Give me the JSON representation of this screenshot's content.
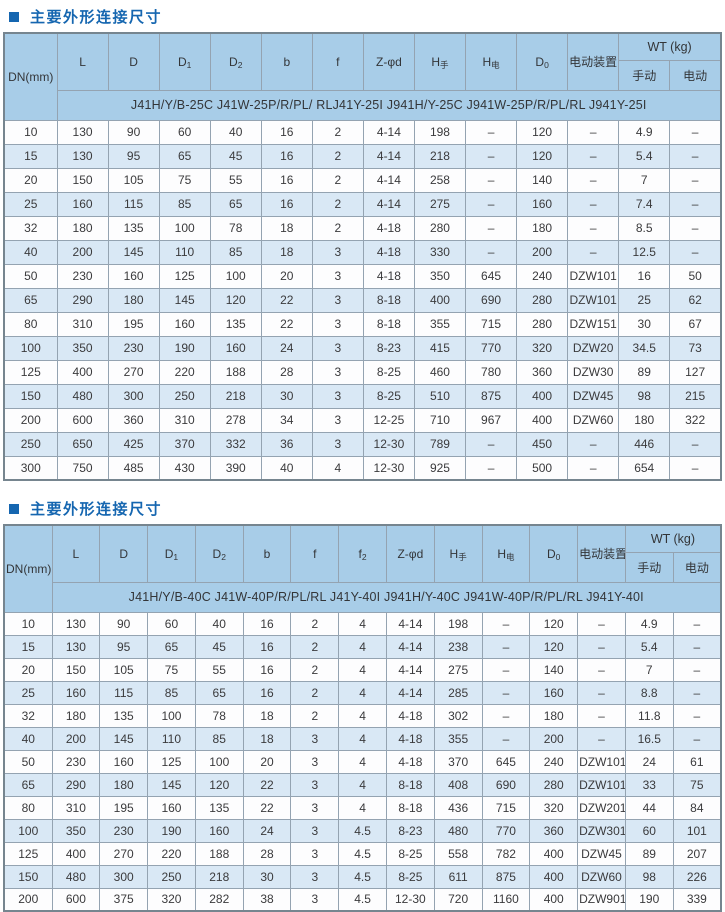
{
  "colors": {
    "title_blue": "#1566b0",
    "header_bg": "#a8cde8",
    "alt_row_bg": "#d9e8f5",
    "border_gray": "#94a3b1"
  },
  "tables": [
    {
      "title": "主要外形连接尺寸",
      "header": {
        "dn_label": "DN(mm)",
        "columns": [
          {
            "base": "L"
          },
          {
            "base": "D"
          },
          {
            "base": "D",
            "sub": "1"
          },
          {
            "base": "D",
            "sub": "2"
          },
          {
            "base": "b"
          },
          {
            "base": "f"
          },
          {
            "base": "Z-φd"
          },
          {
            "base": "H",
            "sub": "手"
          },
          {
            "base": "H",
            "sub": "电"
          },
          {
            "base": "D",
            "sub": "0"
          },
          {
            "base": "电动装置"
          }
        ],
        "wt_label": "WT (kg)",
        "wt_columns": [
          "手动",
          "电动"
        ],
        "models_line": "J41H/Y/B-25C  J41W-25P/R/PL/ RLJ41Y-25I  J941H/Y-25C  J941W-25P/R/PL/RL  J941Y-25I"
      },
      "rows": [
        [
          "10",
          "130",
          "90",
          "60",
          "40",
          "16",
          "2",
          "4-14",
          "198",
          "–",
          "120",
          "–",
          "4.9",
          "–"
        ],
        [
          "15",
          "130",
          "95",
          "65",
          "45",
          "16",
          "2",
          "4-14",
          "218",
          "–",
          "120",
          "–",
          "5.4",
          "–"
        ],
        [
          "20",
          "150",
          "105",
          "75",
          "55",
          "16",
          "2",
          "4-14",
          "258",
          "–",
          "140",
          "–",
          "7",
          "–"
        ],
        [
          "25",
          "160",
          "115",
          "85",
          "65",
          "16",
          "2",
          "4-14",
          "275",
          "–",
          "160",
          "–",
          "7.4",
          "–"
        ],
        [
          "32",
          "180",
          "135",
          "100",
          "78",
          "18",
          "2",
          "4-18",
          "280",
          "–",
          "180",
          "–",
          "8.5",
          "–"
        ],
        [
          "40",
          "200",
          "145",
          "110",
          "85",
          "18",
          "3",
          "4-18",
          "330",
          "–",
          "200",
          "–",
          "12.5",
          "–"
        ],
        [
          "50",
          "230",
          "160",
          "125",
          "100",
          "20",
          "3",
          "4-18",
          "350",
          "645",
          "240",
          "DZW101",
          "16",
          "50"
        ],
        [
          "65",
          "290",
          "180",
          "145",
          "120",
          "22",
          "3",
          "8-18",
          "400",
          "690",
          "280",
          "DZW101",
          "25",
          "62"
        ],
        [
          "80",
          "310",
          "195",
          "160",
          "135",
          "22",
          "3",
          "8-18",
          "355",
          "715",
          "280",
          "DZW151",
          "30",
          "67"
        ],
        [
          "100",
          "350",
          "230",
          "190",
          "160",
          "24",
          "3",
          "8-23",
          "415",
          "770",
          "320",
          "DZW20",
          "34.5",
          "73"
        ],
        [
          "125",
          "400",
          "270",
          "220",
          "188",
          "28",
          "3",
          "8-25",
          "460",
          "780",
          "360",
          "DZW30",
          "89",
          "127"
        ],
        [
          "150",
          "480",
          "300",
          "250",
          "218",
          "30",
          "3",
          "8-25",
          "510",
          "875",
          "400",
          "DZW45",
          "98",
          "215"
        ],
        [
          "200",
          "600",
          "360",
          "310",
          "278",
          "34",
          "3",
          "12-25",
          "710",
          "967",
          "400",
          "DZW60",
          "180",
          "322"
        ],
        [
          "250",
          "650",
          "425",
          "370",
          "332",
          "36",
          "3",
          "12-30",
          "789",
          "–",
          "450",
          "–",
          "446",
          "–"
        ],
        [
          "300",
          "750",
          "485",
          "430",
          "390",
          "40",
          "4",
          "12-30",
          "925",
          "–",
          "500",
          "–",
          "654",
          "–"
        ]
      ]
    },
    {
      "title": "主要外形连接尺寸",
      "header": {
        "dn_label": "DN(mm)",
        "columns": [
          {
            "base": "L"
          },
          {
            "base": "D"
          },
          {
            "base": "D",
            "sub": "1"
          },
          {
            "base": "D",
            "sub": "2"
          },
          {
            "base": "b"
          },
          {
            "base": "f"
          },
          {
            "base": "f",
            "sub": "2"
          },
          {
            "base": "Z-φd"
          },
          {
            "base": "H",
            "sub": "手"
          },
          {
            "base": "H",
            "sub": "电"
          },
          {
            "base": "D",
            "sub": "0"
          },
          {
            "base": "电动装置"
          }
        ],
        "wt_label": "WT (kg)",
        "wt_columns": [
          "手动",
          "电动"
        ],
        "models_line": "J41H/Y/B-40C  J41W-40P/R/PL/RL  J41Y-40I  J941H/Y-40C  J941W-40P/R/PL/RL  J941Y-40I"
      },
      "rows": [
        [
          "10",
          "130",
          "90",
          "60",
          "40",
          "16",
          "2",
          "4",
          "4-14",
          "198",
          "–",
          "120",
          "–",
          "4.9",
          "–"
        ],
        [
          "15",
          "130",
          "95",
          "65",
          "45",
          "16",
          "2",
          "4",
          "4-14",
          "238",
          "–",
          "120",
          "–",
          "5.4",
          "–"
        ],
        [
          "20",
          "150",
          "105",
          "75",
          "55",
          "16",
          "2",
          "4",
          "4-14",
          "275",
          "–",
          "140",
          "–",
          "7",
          "–"
        ],
        [
          "25",
          "160",
          "115",
          "85",
          "65",
          "16",
          "2",
          "4",
          "4-14",
          "285",
          "–",
          "160",
          "–",
          "8.8",
          "–"
        ],
        [
          "32",
          "180",
          "135",
          "100",
          "78",
          "18",
          "2",
          "4",
          "4-18",
          "302",
          "–",
          "180",
          "–",
          "11.8",
          "–"
        ],
        [
          "40",
          "200",
          "145",
          "110",
          "85",
          "18",
          "3",
          "4",
          "4-18",
          "355",
          "–",
          "200",
          "–",
          "16.5",
          "–"
        ],
        [
          "50",
          "230",
          "160",
          "125",
          "100",
          "20",
          "3",
          "4",
          "4-18",
          "370",
          "645",
          "240",
          "DZW101",
          "24",
          "61"
        ],
        [
          "65",
          "290",
          "180",
          "145",
          "120",
          "22",
          "3",
          "4",
          "8-18",
          "408",
          "690",
          "280",
          "DZW101",
          "33",
          "75"
        ],
        [
          "80",
          "310",
          "195",
          "160",
          "135",
          "22",
          "3",
          "4",
          "8-18",
          "436",
          "715",
          "320",
          "DZW201",
          "44",
          "84"
        ],
        [
          "100",
          "350",
          "230",
          "190",
          "160",
          "24",
          "3",
          "4.5",
          "8-23",
          "480",
          "770",
          "360",
          "DZW301",
          "60",
          "101"
        ],
        [
          "125",
          "400",
          "270",
          "220",
          "188",
          "28",
          "3",
          "4.5",
          "8-25",
          "558",
          "782",
          "400",
          "DZW45",
          "89",
          "207"
        ],
        [
          "150",
          "480",
          "300",
          "250",
          "218",
          "30",
          "3",
          "4.5",
          "8-25",
          "611",
          "875",
          "400",
          "DZW60",
          "98",
          "226"
        ],
        [
          "200",
          "600",
          "375",
          "320",
          "282",
          "38",
          "3",
          "4.5",
          "12-30",
          "720",
          "1160",
          "400",
          "DZW901",
          "190",
          "339"
        ]
      ]
    }
  ]
}
